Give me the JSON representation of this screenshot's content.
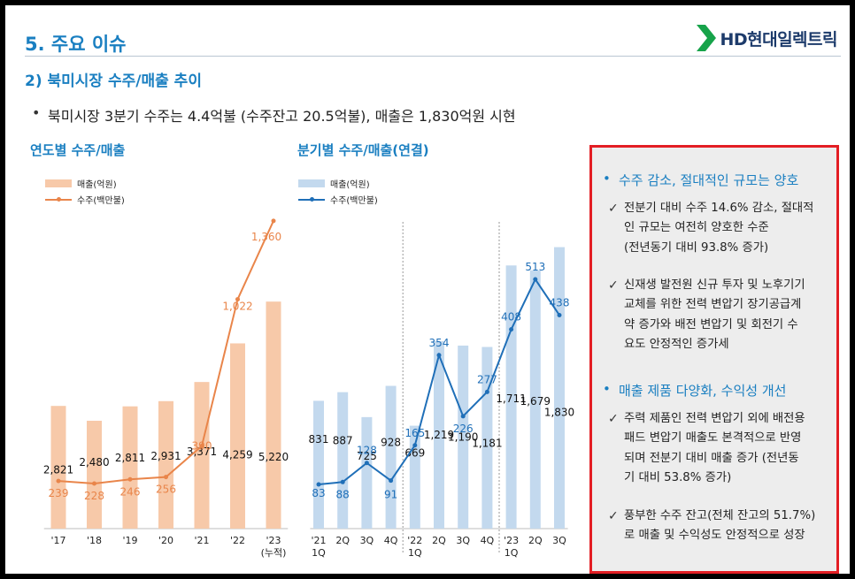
{
  "header": {
    "title": "5. 주요 이슈",
    "logo_text": "HD현대일렉트릭",
    "logo_color": "#17a34a"
  },
  "subtitle": "2) 북미시장 수주/매출 추이",
  "summary_bullet": "북미시장 3분기 수주는 4.4억불 (수주잔고 20.5억불), 매출은 1,830억원 시현",
  "chart_data": [
    {
      "type": "bar",
      "title": "연도별 수주/매출",
      "categories": [
        "'17",
        "'18",
        "'19",
        "'20",
        "'21",
        "'22",
        "'23"
      ],
      "category_sub": [
        "",
        "",
        "",
        "",
        "",
        "",
        "(누적)"
      ],
      "series": [
        {
          "name": "매출(억원)",
          "type": "bar",
          "color": "#f7c9a9",
          "values": [
            2821,
            2480,
            2811,
            2931,
            3371,
            4259,
            5220
          ],
          "labels": [
            "2,821",
            "2,480",
            "2,811",
            "2,931",
            "3,371",
            "4,259",
            "5,220"
          ]
        },
        {
          "name": "수주(백만불)",
          "type": "line",
          "color": "#e9854a",
          "values": [
            239,
            228,
            246,
            256,
            390,
            1022,
            1360
          ],
          "labels": [
            "239",
            "228",
            "246",
            "256",
            "390",
            "1,022",
            "1,360"
          ]
        }
      ],
      "legend": "top-left"
    },
    {
      "type": "bar",
      "title": "분기별 수주/매출(연결)",
      "categories": [
        "'21",
        "2Q",
        "3Q",
        "4Q",
        "'22",
        "2Q",
        "3Q",
        "4Q",
        "'23",
        "2Q",
        "3Q"
      ],
      "category_sub": [
        "1Q",
        "",
        "",
        "",
        "1Q",
        "",
        "",
        "",
        "1Q",
        "",
        ""
      ],
      "series": [
        {
          "name": "매출(억원)",
          "type": "bar",
          "color": "#c3d9ee",
          "values": [
            831,
            887,
            725,
            928,
            669,
            1219,
            1190,
            1181,
            1711,
            1679,
            1830
          ],
          "labels": [
            "831",
            "887",
            "725",
            "928",
            "669",
            "1,219",
            "1,190",
            "1,181",
            "1,711",
            "1,679",
            "1,830"
          ]
        },
        {
          "name": "수주(백만불)",
          "type": "line",
          "color": "#1f6fb8",
          "values": [
            83,
            88,
            128,
            91,
            165,
            354,
            226,
            277,
            408,
            513,
            438
          ],
          "labels": [
            "83",
            "88",
            "128",
            "91",
            "165",
            "354",
            "226",
            "277",
            "408",
            "513",
            "438"
          ]
        }
      ],
      "legend": "top-left"
    }
  ],
  "panel": {
    "border_color": "#e31e24",
    "sections": [
      {
        "heading": "수주 감소, 절대적인 규모는 양호",
        "items": [
          [
            "전분기 대비 수주 14.6% 감소, 절대적",
            "인 규모는 여전히 양호한 수준",
            "(전년동기 대비 93.8% 증가)"
          ],
          [
            "신재생 발전원 신규 투자 및 노후기기",
            "교체를 위한 전력 변압기 장기공급계",
            "약 증가와 배전 변압기 및 회전기 수",
            "요도 안정적인 증가세"
          ]
        ]
      },
      {
        "heading": "매출 제품 다양화, 수익성 개선",
        "items": [
          [
            "주력 제품인 전력 변압기 외에 배전용",
            "패드 변압기 매출도 본격적으로 반영",
            "되며 전분기 대비 매출 증가 (전년동",
            "기 대비 53.8% 증가)"
          ],
          [
            "풍부한 수주 잔고(전체 잔고의 51.7%)",
            "로 매출 및 수익성도 안정적으로 성장"
          ]
        ]
      }
    ]
  }
}
